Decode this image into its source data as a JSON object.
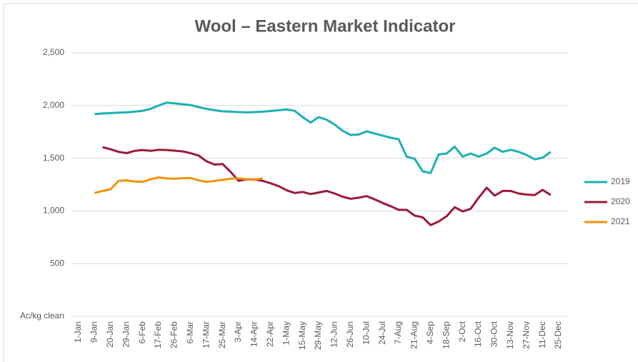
{
  "chart_data": {
    "type": "line",
    "title": "Wool – Eastern Market Indicator",
    "y_label": "Ac/kg clean",
    "categories": [
      "1-Jan",
      null,
      "9-Jan",
      null,
      "20-Jan",
      null,
      "29-Jan",
      null,
      "6-Feb",
      null,
      "17-Feb",
      null,
      "26-Feb",
      null,
      "6-Mar",
      null,
      "17-Mar",
      null,
      "25-Mar",
      null,
      "3-Apr",
      null,
      "14-Apr",
      null,
      "22-Apr",
      null,
      "1-May",
      null,
      "15-May",
      null,
      "29-May",
      null,
      "12-Jun",
      null,
      "26-Jun",
      null,
      "10-Jul",
      null,
      "24-Jul",
      null,
      "7-Aug",
      null,
      "21-Aug",
      null,
      "4-Sep",
      null,
      "18-Sep",
      null,
      "2-Oct",
      null,
      "16-Oct",
      null,
      "30-Oct",
      null,
      "13-Nov",
      null,
      "27-Nov",
      null,
      "11-Dec",
      null,
      "25-Dec"
    ],
    "series": [
      {
        "name": "2019",
        "color": "#1cb0b4",
        "values": [
          null,
          null,
          1918,
          1925,
          1928,
          1932,
          1935,
          1942,
          1950,
          1968,
          2000,
          2028,
          2020,
          2012,
          2005,
          1985,
          1968,
          1955,
          1945,
          1942,
          1938,
          1935,
          1938,
          1942,
          1948,
          1955,
          1962,
          1950,
          1890,
          1838,
          1890,
          1865,
          1820,
          1760,
          1720,
          1725,
          1755,
          1735,
          1715,
          1695,
          1680,
          1515,
          1495,
          1375,
          1360,
          1535,
          1545,
          1610,
          1515,
          1545,
          1515,
          1545,
          1600,
          1560,
          1580,
          1560,
          1530,
          1490,
          1505,
          1560,
          null
        ]
      },
      {
        "name": "2020",
        "color": "#9b1b3a",
        "values": [
          null,
          null,
          null,
          1605,
          1585,
          1560,
          1548,
          1570,
          1578,
          1570,
          1580,
          1578,
          1572,
          1565,
          1548,
          1525,
          1470,
          1440,
          1445,
          1370,
          1285,
          1300,
          1298,
          1285,
          1262,
          1235,
          1195,
          1170,
          1180,
          1160,
          1175,
          1190,
          1165,
          1135,
          1115,
          1125,
          1140,
          1110,
          1075,
          1045,
          1010,
          1010,
          955,
          940,
          865,
          900,
          950,
          1035,
          995,
          1020,
          1125,
          1220,
          1145,
          1190,
          1190,
          1165,
          1155,
          1150,
          1200,
          1150,
          null
        ]
      },
      {
        "name": "2021",
        "color": "#f0920e",
        "values": [
          null,
          null,
          1170,
          1190,
          1205,
          1285,
          1290,
          1280,
          1275,
          1300,
          1318,
          1308,
          1305,
          1310,
          1312,
          1290,
          1275,
          1285,
          1295,
          1305,
          1310,
          1300,
          1295,
          1310,
          null,
          null,
          null,
          null,
          null,
          null,
          null,
          null,
          null,
          null,
          null,
          null,
          null,
          null,
          null,
          null,
          null,
          null,
          null,
          null,
          null,
          null,
          null,
          null,
          null,
          null,
          null,
          null,
          null,
          null,
          null,
          null,
          null,
          null,
          null,
          null,
          null
        ]
      }
    ],
    "ylim": [
      0,
      2500
    ],
    "yticks": [
      {
        "value": 500,
        "label": "500"
      },
      {
        "value": 1000,
        "label": "1,000"
      },
      {
        "value": 1500,
        "label": "1,500"
      },
      {
        "value": 2000,
        "label": "2,000"
      },
      {
        "value": 2500,
        "label": "2,500"
      }
    ],
    "grid": true,
    "legend": "right"
  }
}
